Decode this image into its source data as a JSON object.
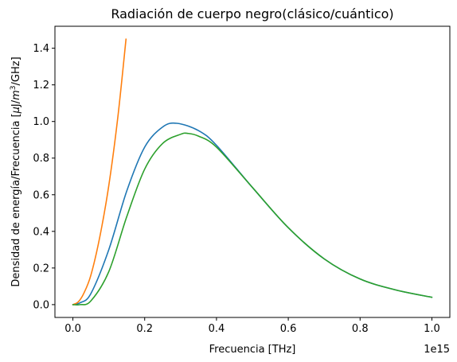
{
  "chart_data": {
    "type": "line",
    "title": "Radiación de cuerpo negro(clásico/cuántico)",
    "xlabel": "Frecuencia [THz]",
    "ylabel_parts": [
      "Densidad de energía/Frecuencia [",
      "μ",
      "J/",
      "m",
      "3",
      "/GHz]"
    ],
    "x_offset_text": "1e15",
    "xlim": [
      -0.05,
      1.05
    ],
    "ylim": [
      -0.07,
      1.52
    ],
    "x_ticks": [
      0.0,
      0.2,
      0.4,
      0.6,
      0.8,
      1.0
    ],
    "x_tick_labels": [
      "0.0",
      "0.2",
      "0.4",
      "0.6",
      "0.8",
      "1.0"
    ],
    "y_ticks": [
      0.0,
      0.2,
      0.4,
      0.6,
      0.8,
      1.0,
      1.2,
      1.4
    ],
    "y_tick_labels": [
      "0.0",
      "0.2",
      "0.4",
      "0.6",
      "0.8",
      "1.0",
      "1.2",
      "1.4"
    ],
    "grid": false,
    "series": [
      {
        "color": "#1f77b4",
        "x": [
          0.0,
          0.02,
          0.05,
          0.1,
          0.15,
          0.2,
          0.25,
          0.29,
          0.35,
          0.4,
          0.5,
          0.6,
          0.7,
          0.8,
          0.9,
          1.0
        ],
        "y": [
          0.0,
          0.01,
          0.06,
          0.3,
          0.62,
          0.86,
          0.97,
          0.99,
          0.95,
          0.87,
          0.64,
          0.42,
          0.25,
          0.14,
          0.08,
          0.04
        ]
      },
      {
        "color": "#ff7f0e",
        "x": [
          0.0,
          0.015,
          0.03,
          0.05,
          0.075,
          0.1,
          0.125,
          0.148
        ],
        "y": [
          0.0,
          0.015,
          0.06,
          0.16,
          0.37,
          0.65,
          1.02,
          1.45
        ]
      },
      {
        "color": "#2ca02c",
        "x": [
          0.0,
          0.02,
          0.05,
          0.1,
          0.15,
          0.2,
          0.25,
          0.3,
          0.32,
          0.35,
          0.4,
          0.5,
          0.6,
          0.7,
          0.8,
          0.9,
          1.0
        ],
        "y": [
          0.0,
          0.0,
          0.02,
          0.18,
          0.48,
          0.74,
          0.88,
          0.93,
          0.935,
          0.92,
          0.86,
          0.64,
          0.42,
          0.25,
          0.14,
          0.08,
          0.04
        ]
      }
    ]
  }
}
